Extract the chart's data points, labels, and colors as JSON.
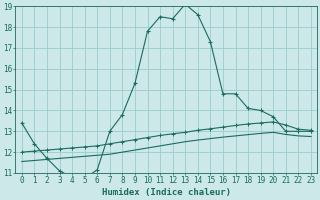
{
  "xlabel": "Humidex (Indice chaleur)",
  "xlim": [
    -0.5,
    23.5
  ],
  "ylim": [
    11,
    19
  ],
  "yticks": [
    11,
    12,
    13,
    14,
    15,
    16,
    17,
    18,
    19
  ],
  "xticks": [
    0,
    1,
    2,
    3,
    4,
    5,
    6,
    7,
    8,
    9,
    10,
    11,
    12,
    13,
    14,
    15,
    16,
    17,
    18,
    19,
    20,
    21,
    22,
    23
  ],
  "bg_color": "#cce8e8",
  "grid_color": "#99cccc",
  "line_color": "#1a6b60",
  "curve1_x": [
    0,
    1,
    2,
    3,
    4,
    5,
    6,
    7,
    8,
    9,
    10,
    11,
    12,
    13,
    14,
    15,
    16,
    17,
    18,
    19,
    20,
    21,
    22,
    23
  ],
  "curve1_y": [
    13.4,
    12.4,
    11.7,
    11.1,
    10.8,
    10.75,
    11.15,
    13.0,
    13.8,
    15.3,
    17.8,
    18.5,
    18.4,
    19.1,
    18.6,
    17.3,
    14.8,
    14.8,
    14.1,
    14.0,
    13.7,
    13.0,
    13.0,
    13.0
  ],
  "curve2_x": [
    0,
    1,
    2,
    3,
    4,
    5,
    6,
    7,
    8,
    9,
    10,
    11,
    12,
    13,
    14,
    15,
    16,
    17,
    18,
    19,
    20,
    21,
    22,
    23
  ],
  "curve2_y": [
    12.0,
    12.05,
    12.1,
    12.15,
    12.2,
    12.25,
    12.3,
    12.4,
    12.5,
    12.6,
    12.7,
    12.8,
    12.88,
    12.95,
    13.05,
    13.12,
    13.2,
    13.28,
    13.35,
    13.4,
    13.45,
    13.3,
    13.1,
    13.05
  ],
  "curve3_x": [
    0,
    1,
    2,
    3,
    4,
    5,
    6,
    7,
    8,
    9,
    10,
    11,
    12,
    13,
    14,
    15,
    16,
    17,
    18,
    19,
    20,
    21,
    22,
    23
  ],
  "curve3_y": [
    11.55,
    11.6,
    11.65,
    11.7,
    11.75,
    11.8,
    11.85,
    11.9,
    12.0,
    12.1,
    12.2,
    12.3,
    12.4,
    12.5,
    12.58,
    12.65,
    12.72,
    12.78,
    12.84,
    12.9,
    12.95,
    12.85,
    12.78,
    12.75
  ]
}
